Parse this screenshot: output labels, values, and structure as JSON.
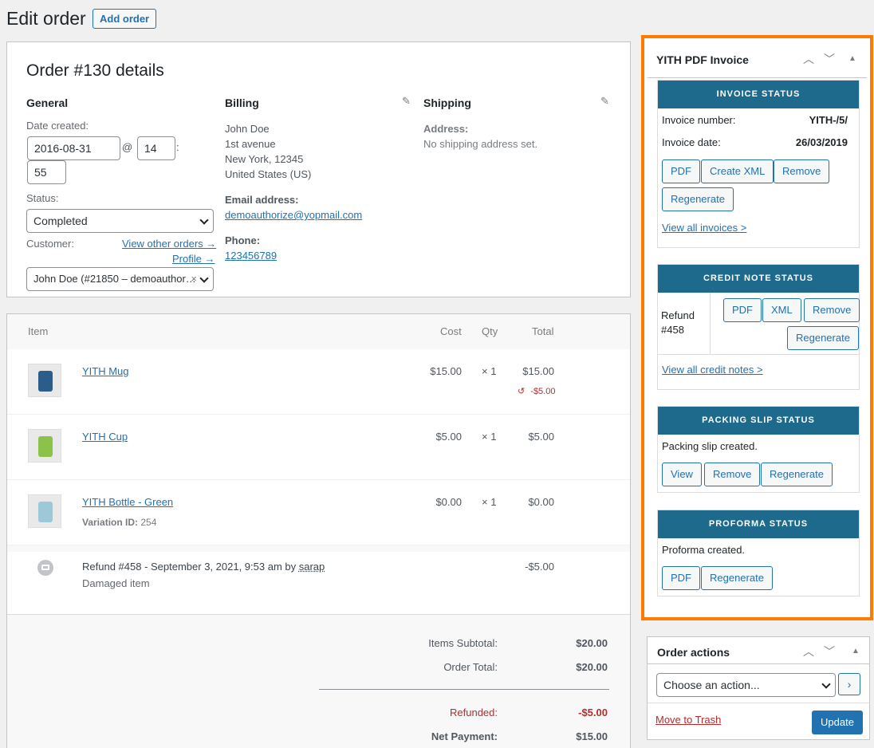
{
  "page": {
    "title": "Edit order",
    "add_button": "Add order"
  },
  "details": {
    "heading": "Order #130 details",
    "general": {
      "title": "General",
      "date_label": "Date created:",
      "date": "2016-08-31",
      "at": "@",
      "hour": "14",
      "colon": ":",
      "minute": "55",
      "status_label": "Status:",
      "status": "Completed",
      "customer_label": "Customer:",
      "view_other_orders": "View other orders →",
      "profile": "Profile →",
      "customer": "John Doe (#21850 – demoauthor…",
      "clear": "×"
    },
    "billing": {
      "title": "Billing",
      "lines": [
        "John Doe",
        "1st avenue",
        "New York, 12345",
        "United States (US)"
      ],
      "email_label": "Email address:",
      "email": "demoauthorize@yopmail.com",
      "phone_label": "Phone:",
      "phone": "123456789"
    },
    "shipping": {
      "title": "Shipping",
      "address_label": "Address:",
      "address": "No shipping address set."
    }
  },
  "items": {
    "headers": {
      "item": "Item",
      "cost": "Cost",
      "qty": "Qty",
      "total": "Total"
    },
    "rows": [
      {
        "name": "YITH Mug",
        "cost": "$15.00",
        "qty": "× 1",
        "total": "$15.00",
        "refund": "-$5.00",
        "color": "#2a5d8a"
      },
      {
        "name": "YITH Cup",
        "cost": "$5.00",
        "qty": "× 1",
        "total": "$5.00",
        "color": "#8bc34a"
      },
      {
        "name": "YITH Bottle - Green",
        "cost": "$0.00",
        "qty": "× 1",
        "total": "$0.00",
        "variation_label": "Variation ID:",
        "variation_id": "254",
        "color": "#9cc8d8"
      }
    ],
    "refund": {
      "text": "Refund #458 - September 3, 2021, 9:53 am by",
      "user": "sarap",
      "reason": "Damaged item",
      "amount": "-$5.00"
    },
    "totals": {
      "subtotal_label": "Items Subtotal:",
      "subtotal": "$20.00",
      "order_total_label": "Order Total:",
      "order_total": "$20.00",
      "refunded_label": "Refunded:",
      "refunded": "-$5.00",
      "net_label": "Net Payment:",
      "net": "$15.00"
    }
  },
  "pdf_panel": {
    "title": "YITH PDF Invoice",
    "invoice": {
      "header": "INVOICE STATUS",
      "number_label": "Invoice number:",
      "number": "YITH-/5/",
      "date_label": "Invoice date:",
      "date": "26/03/2019",
      "buttons": [
        "PDF",
        "Create XML",
        "Remove",
        "Regenerate"
      ],
      "link": "View all invoices >"
    },
    "credit": {
      "header": "CREDIT NOTE STATUS",
      "refund_label": "Refund",
      "refund_id": "#458",
      "buttons": [
        "PDF",
        "XML",
        "Remove",
        "Regenerate"
      ],
      "link": "View all credit notes >"
    },
    "packing": {
      "header": "PACKING SLIP STATUS",
      "text": "Packing slip created.",
      "buttons": [
        "View",
        "Remove",
        "Regenerate"
      ]
    },
    "proforma": {
      "header": "PROFORMA STATUS",
      "text": "Proforma created.",
      "buttons": [
        "PDF",
        "Regenerate"
      ]
    }
  },
  "order_actions": {
    "title": "Order actions",
    "select": "Choose an action...",
    "trash": "Move to Trash",
    "update": "Update"
  },
  "colors": {
    "accent": "#2271b1",
    "highlight": "#ff7a00",
    "card_header": "#1e6a8d",
    "refund_red": "#b32d2e"
  }
}
